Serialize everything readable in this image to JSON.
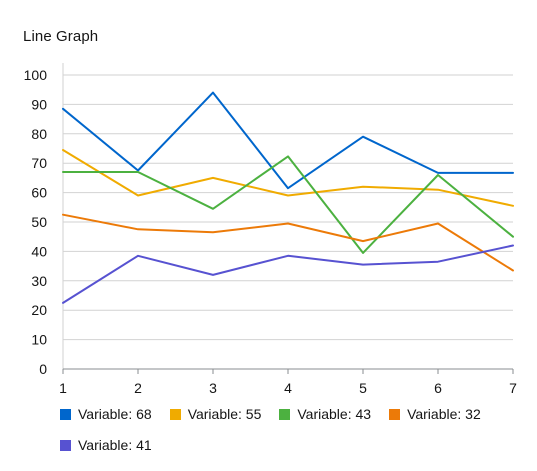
{
  "chart_data": {
    "type": "line",
    "title": "Line Graph",
    "xlabel": "",
    "ylabel": "",
    "x": [
      1,
      2,
      3,
      4,
      5,
      6,
      7
    ],
    "ylim": [
      0,
      100
    ],
    "yticks": [
      0,
      10,
      20,
      30,
      40,
      50,
      60,
      70,
      80,
      90,
      100
    ],
    "grid": "horizontal",
    "legend_position": "bottom",
    "series": [
      {
        "name": "Variable: 68",
        "color": "#0066cc",
        "values": [
          88.5,
          67.5,
          94,
          61.5,
          79,
          66.7,
          66.7
        ]
      },
      {
        "name": "Variable: 55",
        "color": "#f0ab00",
        "values": [
          74.5,
          59,
          65,
          59,
          62,
          61,
          55.5
        ]
      },
      {
        "name": "Variable: 43",
        "color": "#4cb140",
        "values": [
          67,
          67,
          54.5,
          72.3,
          39.5,
          66,
          45
        ]
      },
      {
        "name": "Variable: 32",
        "color": "#ec7a08",
        "values": [
          52.5,
          47.5,
          46.5,
          49.5,
          43.5,
          49.5,
          33.5
        ]
      },
      {
        "name": "Variable: 41",
        "color": "#5752d1",
        "values": [
          22.5,
          38.5,
          32,
          38.5,
          35.5,
          36.5,
          42
        ]
      }
    ]
  }
}
